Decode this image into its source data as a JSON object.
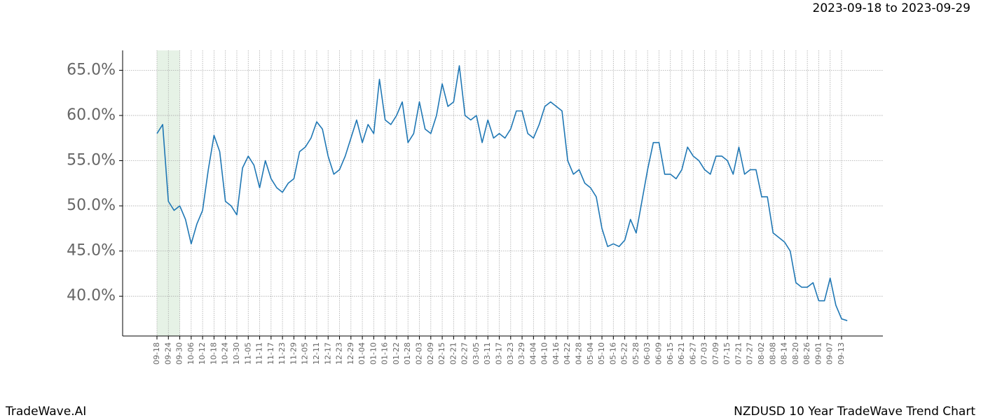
{
  "header": {
    "date_range": "2023-09-18 to 2023-09-29"
  },
  "footer": {
    "brand": "TradeWave.AI",
    "title": "NZDUSD 10 Year TradeWave Trend Chart"
  },
  "chart_data": {
    "type": "line",
    "color": "#1f77b4",
    "grid": true,
    "highlight": {
      "from": 0,
      "to": 4,
      "color": "#e6f2e6"
    },
    "categories": [
      "09-18",
      null,
      "09-24",
      null,
      "09-30",
      null,
      "10-06",
      null,
      "10-12",
      null,
      "10-18",
      null,
      "10-24",
      null,
      "10-30",
      null,
      "11-05",
      null,
      "11-11",
      null,
      "11-17",
      null,
      "11-23",
      null,
      "11-29",
      null,
      "12-05",
      null,
      "12-11",
      null,
      "12-17",
      null,
      "12-23",
      null,
      "12-29",
      null,
      "01-04",
      null,
      "01-10",
      null,
      "01-16",
      null,
      "01-22",
      null,
      "01-28",
      null,
      "02-03",
      null,
      "02-09",
      null,
      "02-15",
      null,
      "02-21",
      null,
      "02-27",
      null,
      "03-05",
      null,
      "03-11",
      null,
      "03-17",
      null,
      "03-23",
      null,
      "03-29",
      null,
      "04-04",
      null,
      "04-10",
      null,
      "04-16",
      null,
      "04-22",
      null,
      "04-28",
      null,
      "05-04",
      null,
      "05-10",
      null,
      "05-16",
      null,
      "05-22",
      null,
      "05-28",
      null,
      "06-03",
      null,
      "06-09",
      null,
      "06-15",
      null,
      "06-21",
      null,
      "06-27",
      null,
      "07-03",
      null,
      "07-09",
      null,
      "07-15",
      null,
      "07-21",
      null,
      "07-27",
      null,
      "08-02",
      null,
      "08-08",
      null,
      "08-14",
      null,
      "08-20",
      null,
      "08-26",
      null,
      "09-01",
      null,
      "09-07",
      null,
      "09-13",
      null
    ],
    "values": [
      58.0,
      59.0,
      50.5,
      49.5,
      50.0,
      48.5,
      45.8,
      48.0,
      49.5,
      54.0,
      57.8,
      56.0,
      50.5,
      50.0,
      49.0,
      54.2,
      55.5,
      54.5,
      52.0,
      55.0,
      53.0,
      52.0,
      51.5,
      52.5,
      53.0,
      56.0,
      56.5,
      57.5,
      59.3,
      58.5,
      55.5,
      53.5,
      54.0,
      55.5,
      57.5,
      59.5,
      57.0,
      59.0,
      58.0,
      64.0,
      59.5,
      59.0,
      60.0,
      61.5,
      57.0,
      58.0,
      61.5,
      58.5,
      58.0,
      60.0,
      63.5,
      61.0,
      61.5,
      65.5,
      60.0,
      59.5,
      60.0,
      57.0,
      59.5,
      57.5,
      58.0,
      57.5,
      58.5,
      60.5,
      60.5,
      58.0,
      57.5,
      59.0,
      61.0,
      61.5,
      61.0,
      60.5,
      55.0,
      53.5,
      54.0,
      52.5,
      52.0,
      51.0,
      47.5,
      45.5,
      45.8,
      45.5,
      46.2,
      48.5,
      47.0,
      50.5,
      54.0,
      57.0,
      57.0,
      53.5,
      53.5,
      53.0,
      54.0,
      56.5,
      55.5,
      55.0,
      54.0,
      53.5,
      55.5,
      55.5,
      55.0,
      53.5,
      56.5,
      53.5,
      54.0,
      54.0,
      51.0,
      51.0,
      47.0,
      46.5,
      46.0,
      45.0,
      41.5,
      41.0,
      41.0,
      41.5,
      39.5,
      39.5,
      42.0,
      39.0,
      37.5,
      37.3
    ],
    "ylim": [
      35.6,
      67.2
    ],
    "yticks": [
      {
        "value": 40,
        "label": "40.0%"
      },
      {
        "value": 45,
        "label": "45.0%"
      },
      {
        "value": 50,
        "label": "50.0%"
      },
      {
        "value": 55,
        "label": "55.0%"
      },
      {
        "value": 60,
        "label": "60.0%"
      },
      {
        "value": 65,
        "label": "65.0%"
      }
    ]
  }
}
